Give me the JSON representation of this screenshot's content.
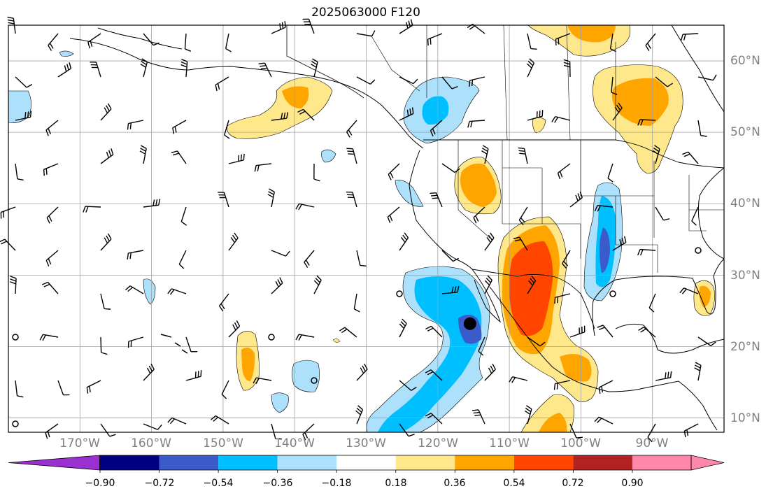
{
  "title": "2025063000 F120",
  "lat_labels": [
    "60°N",
    "50°N",
    "40°N",
    "30°N",
    "20°N",
    "10°N"
  ],
  "lat_values": [
    60,
    50,
    40,
    30,
    20,
    10
  ],
  "lon_labels": [
    "170°W",
    "160°W",
    "150°W",
    "140°W",
    "130°W",
    "120°W",
    "110°W",
    "100°W",
    "90°W"
  ],
  "lon_values": [
    -170,
    -160,
    -150,
    -140,
    -130,
    -120,
    -110,
    -100,
    -90
  ],
  "extent": {
    "lon_min": -180,
    "lon_max": -80,
    "lat_min": 8,
    "lat_max": 65
  },
  "colorbar": {
    "tick_labels": [
      "−0.90",
      "−0.72",
      "−0.54",
      "−0.36",
      "−0.18",
      "0.18",
      "0.36",
      "0.54",
      "0.72",
      "0.90"
    ],
    "levels": [
      -0.9,
      -0.72,
      -0.54,
      -0.36,
      -0.18,
      0.18,
      0.36,
      0.54,
      0.72,
      0.9
    ],
    "colors": {
      "under": "#9b30d0",
      "bins": [
        "#000080",
        "#3a5bc9",
        "#00bfff",
        "#ade0fa",
        "#ffffff",
        "#ffe88c",
        "#ffa500",
        "#ff4500",
        "#b22222"
      ],
      "over": "#ff88aa"
    },
    "extend": "both"
  },
  "marker": {
    "lon": -115.5,
    "lat": 23.2,
    "icon": "black-dot-marker"
  }
}
